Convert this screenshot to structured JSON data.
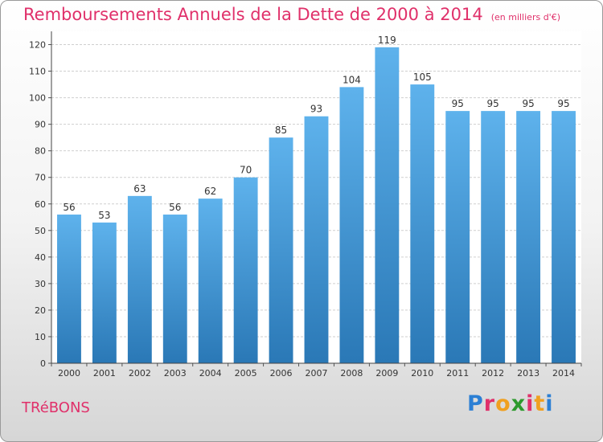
{
  "header": {
    "title": "Remboursements Annuels de la Dette de 2000 à 2014",
    "unit": "(en milliers d'€)"
  },
  "footer": {
    "commune": "TRéBONS",
    "logo_text": "Proxiti"
  },
  "colors": {
    "title": "#e0306a",
    "bar_top": "#5eb2ec",
    "bar_bottom": "#2a78b6",
    "logo": [
      "#2b7fd4",
      "#e0306a",
      "#f0a020",
      "#2d9a2d",
      "#e0306a",
      "#f0a020",
      "#2b7fd4"
    ]
  },
  "chart_data": {
    "type": "bar",
    "title": "Remboursements Annuels de la Dette de 2000 à 2014",
    "xlabel": "",
    "ylabel": "",
    "categories": [
      "2000",
      "2001",
      "2002",
      "2003",
      "2004",
      "2005",
      "2006",
      "2007",
      "2008",
      "2009",
      "2010",
      "2011",
      "2012",
      "2013",
      "2014"
    ],
    "values": [
      56,
      53,
      63,
      56,
      62,
      70,
      85,
      93,
      104,
      119,
      105,
      95,
      95,
      95,
      95
    ],
    "data_labels": [
      "56",
      "53",
      "63",
      "56",
      "62",
      "70",
      "85",
      "93",
      "104",
      "119",
      "105",
      "95",
      "95",
      "95",
      "95"
    ],
    "ylim": [
      0,
      125
    ],
    "yticks": [
      0,
      10,
      20,
      30,
      40,
      50,
      60,
      70,
      80,
      90,
      100,
      110,
      120
    ],
    "grid": true
  }
}
